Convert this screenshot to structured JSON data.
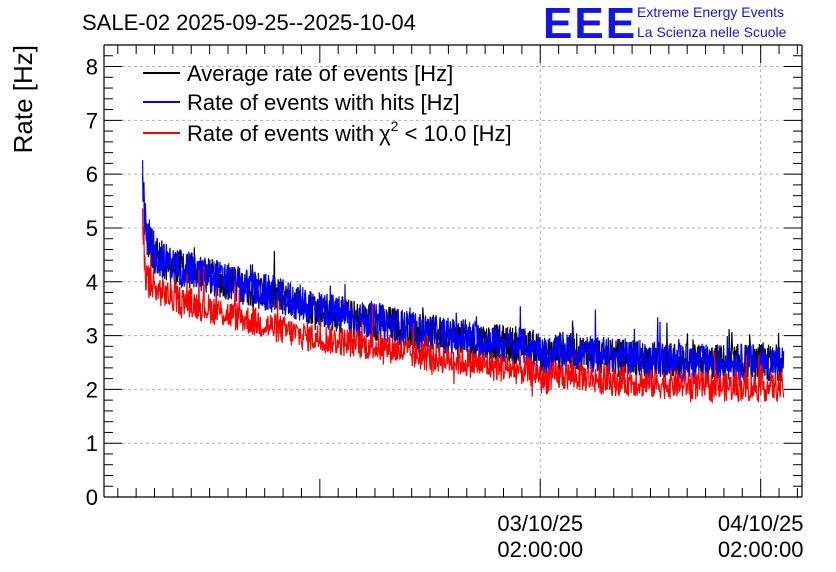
{
  "header": {
    "title": "SALE-02 2025-09-25--2025-10-04"
  },
  "logo": {
    "mark": "EEE",
    "line1": "Extreme Energy Events",
    "line2": "La Scienza nelle Scuole"
  },
  "chart_data": {
    "type": "line",
    "title": "SALE-02 2025-09-25--2025-10-04",
    "xlabel": "",
    "ylabel": "Rate [Hz]",
    "ylim": [
      0,
      8.4
    ],
    "yticks": [
      0,
      1,
      2,
      3,
      4,
      5,
      6,
      7,
      8
    ],
    "xlim_hours": [
      -47.5,
      28.5
    ],
    "xticks": [
      {
        "hours": 0,
        "date": "03/10/25",
        "time": "02:00:00"
      },
      {
        "hours": 24,
        "date": "04/10/25",
        "time": "02:00:00"
      }
    ],
    "grid": true,
    "legend_position": "top-left",
    "x_hours": [
      -43.3,
      -43,
      -42.5,
      -42,
      -41,
      -40,
      -38,
      -36,
      -34,
      -32,
      -30,
      -28,
      -26,
      -24,
      -22,
      -20,
      -18,
      -16,
      -14,
      -12,
      -10,
      -8,
      -6,
      -4,
      -2,
      0,
      2,
      4,
      6,
      8,
      10,
      -0.0,
      12,
      14,
      16,
      18,
      20,
      22,
      24,
      26
    ],
    "series": [
      {
        "name": "Average rate of events [Hz]",
        "color": "#000000",
        "legend_label": "Average rate of events [Hz]",
        "values": [
          5.6,
          4.9,
          4.6,
          4.5,
          4.4,
          4.3,
          4.2,
          4.1,
          4.0,
          3.9,
          3.8,
          3.7,
          3.6,
          3.5,
          3.4,
          3.3,
          3.25,
          3.2,
          3.1,
          3.05,
          3.0,
          2.95,
          2.9,
          2.85,
          2.8,
          2.75,
          2.7,
          2.7,
          2.65,
          2.6,
          2.6,
          2.6,
          2.55,
          2.55,
          2.5,
          2.5,
          2.5,
          2.5,
          2.5,
          2.5
        ]
      },
      {
        "name": "Rate of events with hits [Hz]",
        "color": "#0000ff",
        "legend_label": "Rate of events with hits [Hz]",
        "values": [
          5.8,
          4.9,
          4.6,
          4.5,
          4.4,
          4.3,
          4.2,
          4.1,
          4.0,
          3.9,
          3.8,
          3.7,
          3.6,
          3.5,
          3.4,
          3.3,
          3.25,
          3.2,
          3.1,
          3.05,
          3.0,
          2.95,
          2.9,
          2.85,
          2.8,
          2.75,
          2.7,
          2.7,
          2.65,
          2.6,
          2.6,
          2.6,
          2.55,
          2.55,
          2.5,
          2.5,
          2.5,
          2.5,
          2.5,
          2.5
        ]
      },
      {
        "name": "Rate of events with χ2 < 10.0 [Hz]",
        "color": "#ff0000",
        "legend_label": "Rate of events with",
        "legend_symbol": "χ",
        "legend_sup": "2",
        "legend_suffix": " < 10.0 [Hz]",
        "values": [
          5.0,
          4.1,
          3.9,
          3.85,
          3.8,
          3.7,
          3.6,
          3.5,
          3.4,
          3.3,
          3.2,
          3.1,
          3.0,
          2.95,
          2.9,
          2.85,
          2.8,
          2.75,
          2.65,
          2.6,
          2.55,
          2.5,
          2.45,
          2.4,
          2.35,
          2.3,
          2.25,
          2.25,
          2.2,
          2.15,
          2.15,
          2.15,
          2.1,
          2.1,
          2.1,
          2.05,
          2.05,
          2.05,
          2.05,
          2.05
        ]
      }
    ],
    "data_span_hours": [
      -43.3,
      26.5
    ]
  }
}
